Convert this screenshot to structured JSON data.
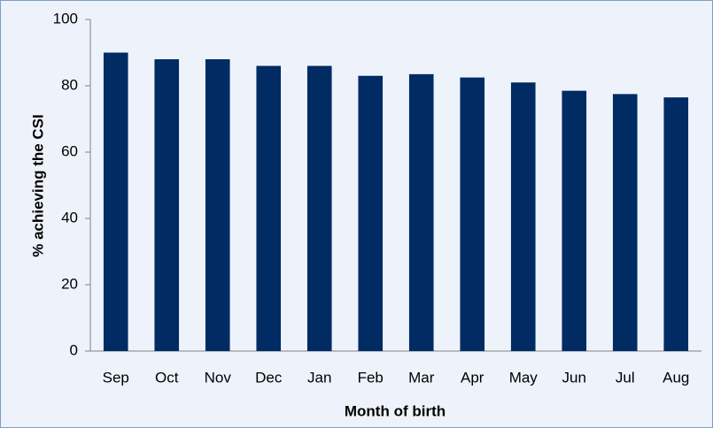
{
  "chart_data": {
    "type": "bar",
    "xlabel": "Month of birth",
    "ylabel": "% achieving the CSI",
    "categories": [
      "Sep",
      "Oct",
      "Nov",
      "Dec",
      "Jan",
      "Feb",
      "Mar",
      "Apr",
      "May",
      "Jun",
      "Jul",
      "Aug"
    ],
    "values": [
      90,
      88,
      88,
      86,
      86,
      83,
      83.5,
      82.5,
      81,
      78.5,
      77.5,
      76.5
    ],
    "color": "#002b63",
    "ylim": [
      0,
      100
    ],
    "yticks": [
      0,
      20,
      40,
      60,
      80,
      100
    ],
    "grid": false
  }
}
